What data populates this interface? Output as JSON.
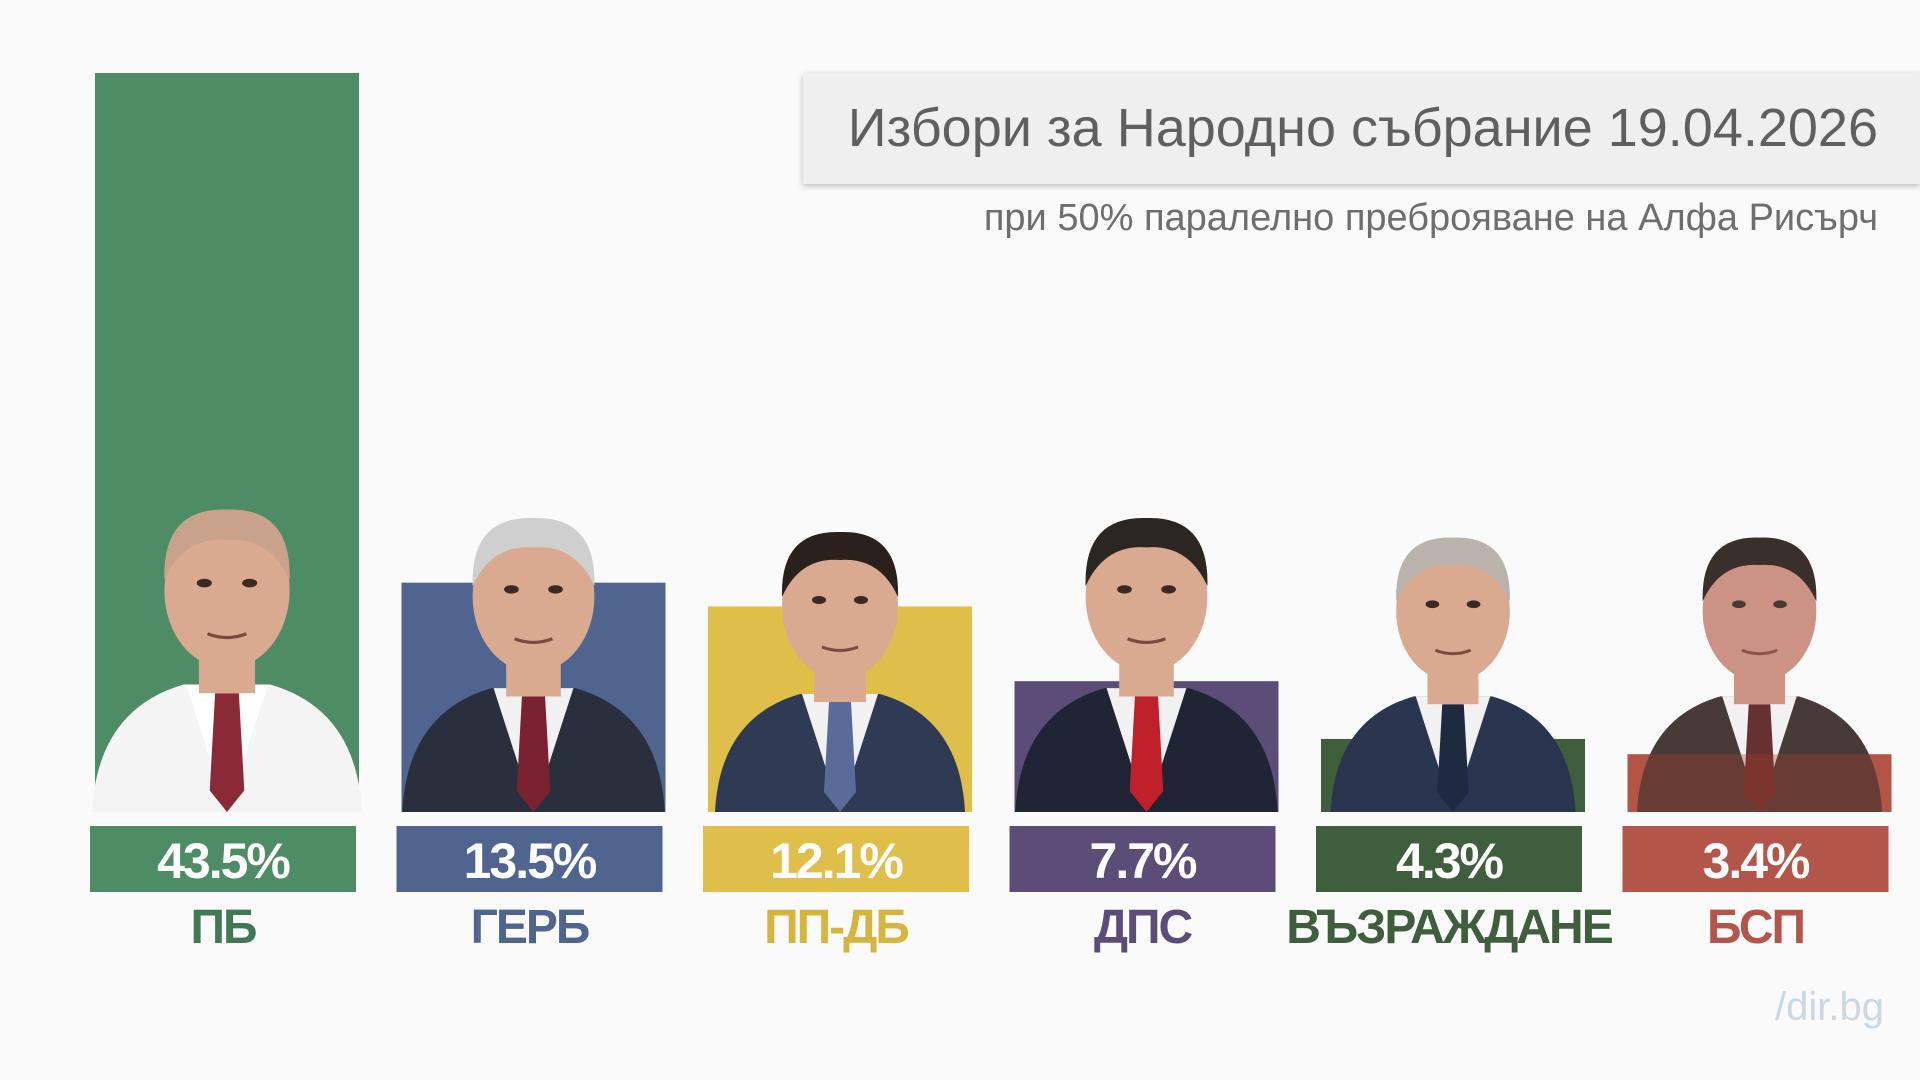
{
  "title": "Избори за Народно събрание 19.04.2026",
  "subtitle": "при 50% паралелно преброяване на Алфа Рисърч",
  "watermark": "/dir.bg",
  "chart_data": {
    "type": "bar",
    "categories": [
      "ПБ",
      "ГЕРБ",
      "ПП-ДБ",
      "ДПС",
      "ВЪЗРАЖДАНЕ",
      "БСП"
    ],
    "values": [
      43.5,
      13.5,
      12.1,
      7.7,
      4.3,
      3.4
    ],
    "value_labels": [
      "43.5%",
      "13.5%",
      "12.1%",
      "7.7%",
      "4.3%",
      "3.4%"
    ],
    "colors": [
      "#4e8c66",
      "#4f6590",
      "#e0be4a",
      "#5b4d78",
      "#3f5f3c",
      "#b35548"
    ],
    "label_colors": [
      "#3f7a55",
      "#4f6590",
      "#d7b43c",
      "#5b4d78",
      "#3f5f3c",
      "#b35548"
    ]
  }
}
